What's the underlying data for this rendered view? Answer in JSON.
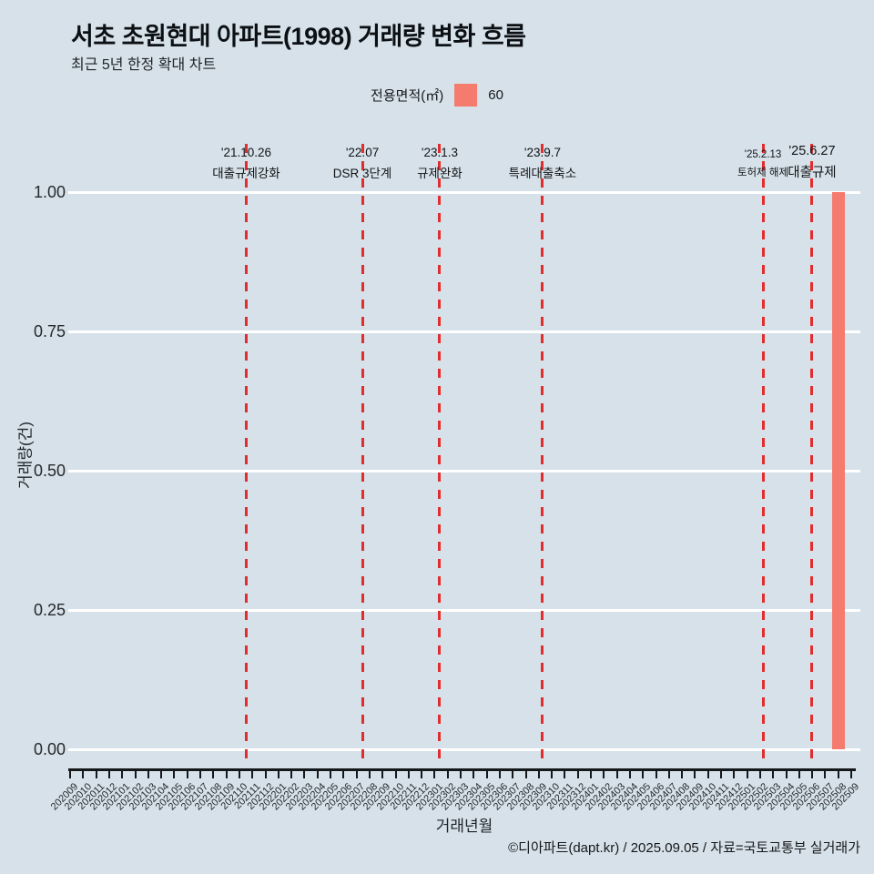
{
  "header": {
    "title": "서초 초원현대 아파트(1998) 거래량 변화 흐름",
    "subtitle": "최근 5년 한정 확대 차트"
  },
  "legend": {
    "label": "전용면적(㎡)",
    "items": [
      {
        "name": "60",
        "color": "#f47b6e"
      }
    ]
  },
  "footer": {
    "credit": "©디아파트(dapt.kr) / 2025.09.05 / 자료=국토교통부 실거래가"
  },
  "chart_data": {
    "type": "bar",
    "title": "서초 초원현대 아파트(1998) 거래량 변화 흐름",
    "subtitle": "최근 5년 한정 확대 차트",
    "xlabel": "거래년월",
    "ylabel": "거래량(건)",
    "ylim": [
      0,
      1.0
    ],
    "ytick_values": [
      0,
      0.25,
      0.5,
      0.75,
      1.0
    ],
    "ytick_labels": [
      "0.00",
      "0.25",
      "0.50",
      "0.75",
      "1.00"
    ],
    "grid": true,
    "grid_color": "#ffffff",
    "background_color": "#d6e1e9",
    "legend_position": "top",
    "categories": [
      "202009",
      "202010",
      "202011",
      "202012",
      "202101",
      "202102",
      "202103",
      "202104",
      "202105",
      "202106",
      "202107",
      "202108",
      "202109",
      "202110",
      "202111",
      "202112",
      "202201",
      "202202",
      "202203",
      "202204",
      "202205",
      "202206",
      "202207",
      "202208",
      "202209",
      "202210",
      "202211",
      "202212",
      "202301",
      "202302",
      "202303",
      "202304",
      "202305",
      "202306",
      "202307",
      "202308",
      "202309",
      "202310",
      "202311",
      "202312",
      "202401",
      "202402",
      "202403",
      "202404",
      "202405",
      "202406",
      "202407",
      "202408",
      "202409",
      "202410",
      "202411",
      "202412",
      "202501",
      "202502",
      "202503",
      "202504",
      "202505",
      "202506",
      "202507",
      "202508",
      "202509"
    ],
    "series": [
      {
        "name": "60",
        "color": "#f47b6e",
        "points": [
          {
            "category": "202508",
            "value": 1.0
          }
        ]
      }
    ],
    "events": [
      {
        "date": "'21.10.26",
        "label": "대출규제강화",
        "month_index": 13.53,
        "emphasis": "normal",
        "line_color": "#e12d2d"
      },
      {
        "date": "'22.07",
        "label": "DSR 3단계",
        "month_index": 22.45,
        "emphasis": "normal",
        "line_color": "#e12d2d"
      },
      {
        "date": "'23.1.3",
        "label": "규제완화",
        "month_index": 28.39,
        "emphasis": "normal",
        "line_color": "#e12d2d"
      },
      {
        "date": "'23.9.7",
        "label": "특례대출축소",
        "month_index": 36.29,
        "emphasis": "normal",
        "line_color": "#e12d2d"
      },
      {
        "date": "'25.2.13",
        "label": "토허제 해제",
        "month_index": 53.22,
        "emphasis": "small",
        "line_color": "#e12d2d"
      },
      {
        "date": "'25.6.27",
        "label": "대출규제",
        "month_index": 56.99,
        "emphasis": "large",
        "line_color": "#e12d2d"
      }
    ]
  }
}
